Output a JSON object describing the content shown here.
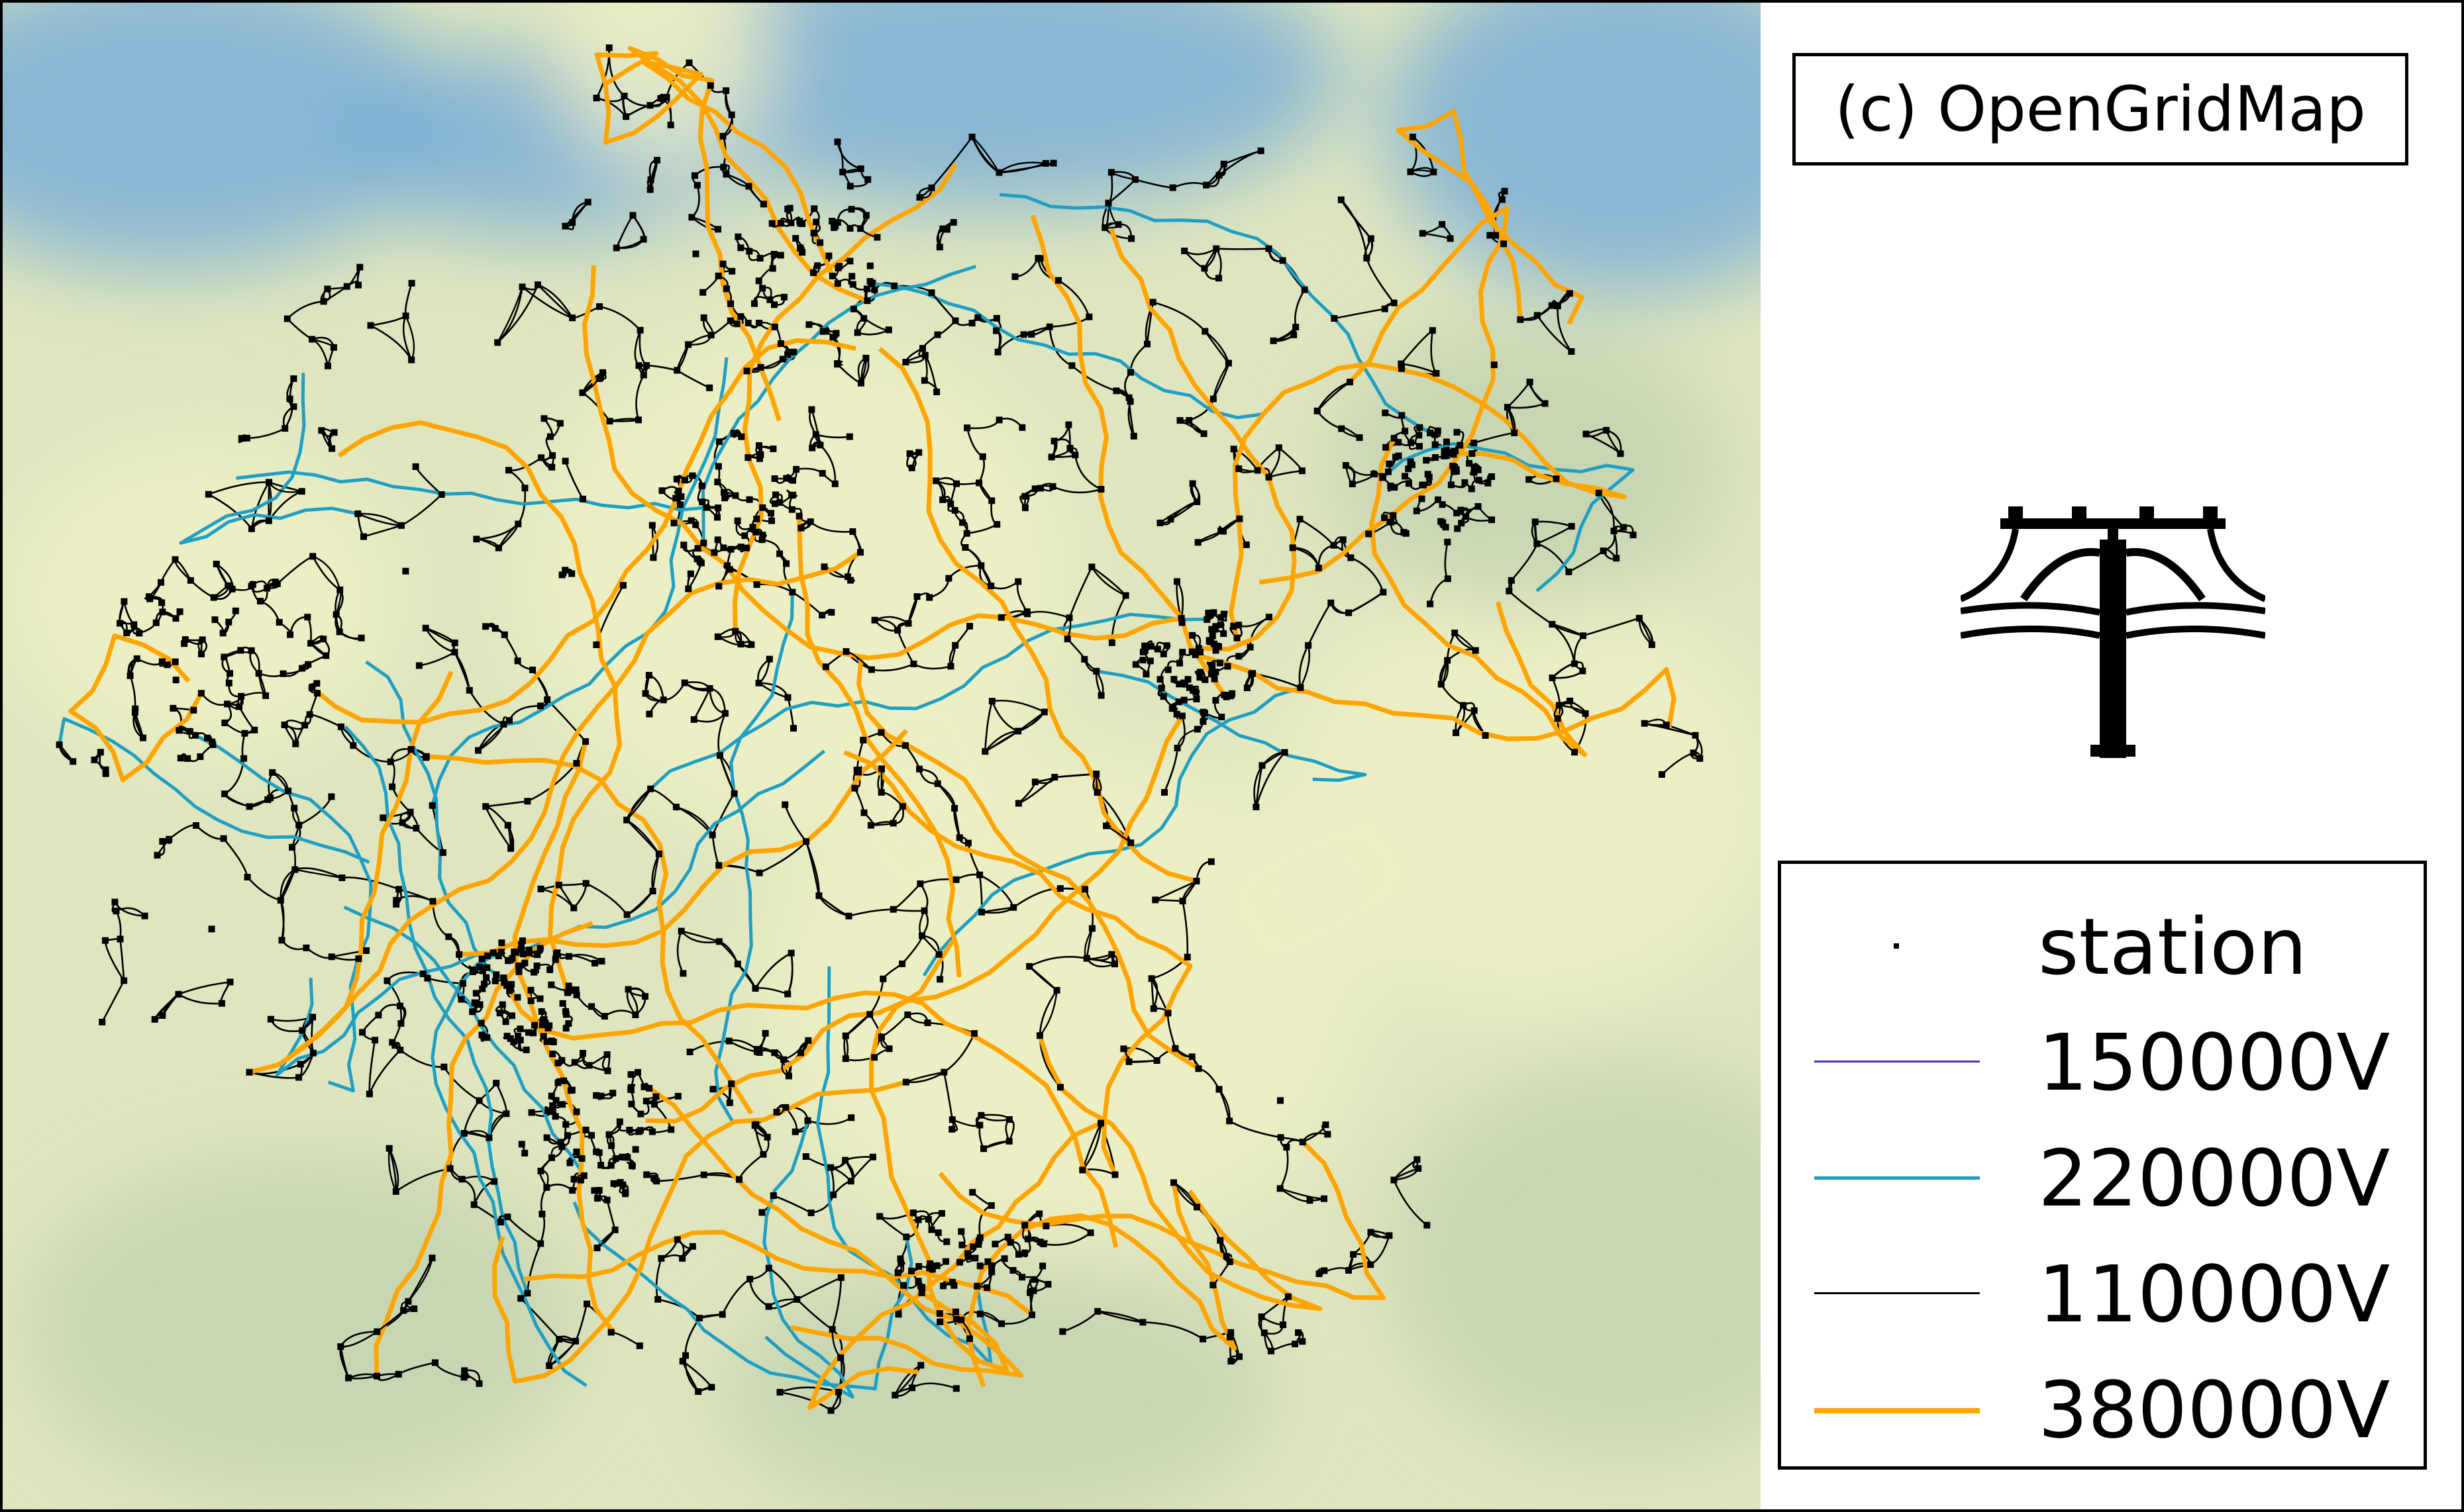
{
  "copyright": "(c) OpenGridMap",
  "legend": [
    {
      "label": "station",
      "kind": "marker",
      "color": "#000000"
    },
    {
      "label": "150000V",
      "kind": "line",
      "color": "#5b2bb0",
      "weight": "thin"
    },
    {
      "label": "220000V",
      "kind": "line",
      "color": "#1f9fc4",
      "weight": "medium"
    },
    {
      "label": "110000V",
      "kind": "line",
      "color": "#000000",
      "weight": "thin"
    },
    {
      "label": "380000V",
      "kind": "line",
      "color": "#ffa500",
      "weight": "thick"
    }
  ],
  "icons": {
    "logo": "power-pole-icon"
  },
  "map": {
    "region": "Germany",
    "background": {
      "sea": "#7aaed6",
      "land": "#dfe6bf",
      "sand": "#eef0c4",
      "green": "#c3d3b0"
    }
  }
}
